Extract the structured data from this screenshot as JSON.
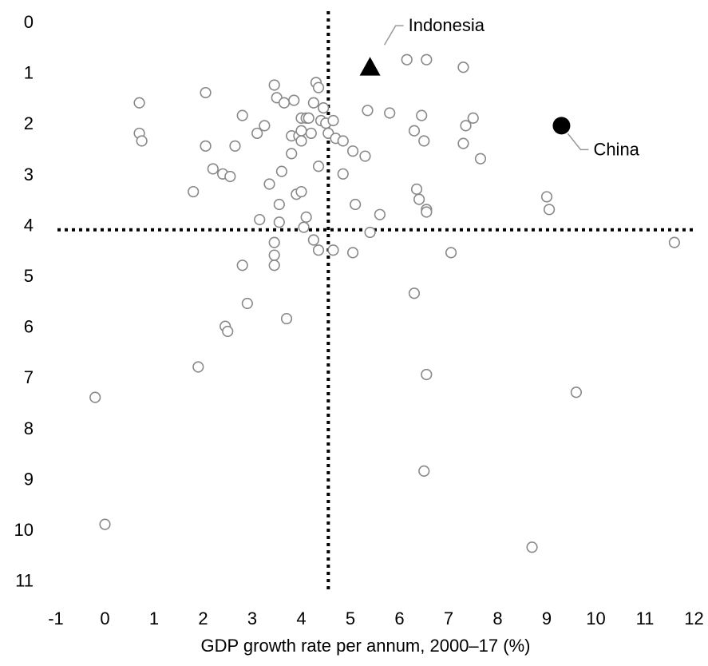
{
  "chart_data": {
    "type": "scatter",
    "title": "",
    "xlabel": "GDP growth rate per annum, 2000–17 (%)",
    "ylabel": "",
    "xlim": [
      -1,
      12
    ],
    "ylim": [
      0,
      11
    ],
    "y_inverted": true,
    "grid": false,
    "x_ticks": [
      "-1",
      "0",
      "1",
      "2",
      "3",
      "4",
      "5",
      "6",
      "7",
      "8",
      "9",
      "10",
      "11",
      "12"
    ],
    "y_ticks": [
      "0",
      "1",
      "2",
      "3",
      "4",
      "5",
      "6",
      "7",
      "8",
      "9",
      "10",
      "11"
    ],
    "reference_lines": {
      "x": 4.55,
      "y": 4.1,
      "style": "dotted"
    },
    "colors": {
      "points": "#888888",
      "highlight": "#000000",
      "leader": "#999999"
    },
    "highlights": [
      {
        "label": "Indonesia",
        "x": 5.4,
        "y": 0.9,
        "marker": "triangle"
      },
      {
        "label": "China",
        "x": 9.3,
        "y": 2.05,
        "marker": "circle"
      }
    ],
    "points": [
      [
        -0.2,
        7.4
      ],
      [
        0.0,
        9.9
      ],
      [
        0.7,
        1.6
      ],
      [
        0.7,
        2.2
      ],
      [
        0.75,
        2.35
      ],
      [
        1.8,
        3.35
      ],
      [
        1.9,
        6.8
      ],
      [
        2.05,
        1.4
      ],
      [
        2.05,
        2.45
      ],
      [
        2.2,
        2.9
      ],
      [
        2.4,
        3.0
      ],
      [
        2.45,
        6.0
      ],
      [
        2.5,
        6.1
      ],
      [
        2.55,
        3.05
      ],
      [
        2.65,
        2.45
      ],
      [
        2.8,
        1.85
      ],
      [
        2.8,
        4.8
      ],
      [
        2.9,
        5.55
      ],
      [
        3.1,
        2.2
      ],
      [
        3.15,
        3.9
      ],
      [
        3.25,
        2.05
      ],
      [
        3.35,
        3.2
      ],
      [
        3.45,
        4.35
      ],
      [
        3.45,
        4.6
      ],
      [
        3.45,
        4.8
      ],
      [
        3.45,
        1.25
      ],
      [
        3.5,
        1.5
      ],
      [
        3.55,
        3.6
      ],
      [
        3.55,
        3.95
      ],
      [
        3.6,
        2.95
      ],
      [
        3.65,
        1.6
      ],
      [
        3.7,
        5.85
      ],
      [
        3.8,
        2.25
      ],
      [
        3.8,
        2.6
      ],
      [
        3.85,
        1.55
      ],
      [
        3.9,
        3.4
      ],
      [
        3.95,
        2.25
      ],
      [
        4.0,
        1.9
      ],
      [
        4.0,
        2.15
      ],
      [
        4.0,
        3.35
      ],
      [
        4.0,
        2.35
      ],
      [
        4.05,
        4.05
      ],
      [
        4.1,
        3.85
      ],
      [
        4.1,
        1.9
      ],
      [
        4.15,
        1.9
      ],
      [
        4.2,
        2.2
      ],
      [
        4.25,
        4.3
      ],
      [
        4.25,
        1.6
      ],
      [
        4.3,
        1.2
      ],
      [
        4.35,
        4.5
      ],
      [
        4.35,
        1.3
      ],
      [
        4.35,
        2.85
      ],
      [
        4.4,
        1.95
      ],
      [
        4.45,
        1.7
      ],
      [
        4.5,
        2.0
      ],
      [
        4.55,
        2.2
      ],
      [
        4.65,
        4.5
      ],
      [
        4.65,
        1.95
      ],
      [
        4.7,
        2.3
      ],
      [
        4.85,
        2.35
      ],
      [
        4.85,
        3.0
      ],
      [
        5.05,
        4.55
      ],
      [
        5.05,
        2.55
      ],
      [
        5.1,
        3.6
      ],
      [
        5.3,
        2.65
      ],
      [
        5.35,
        1.75
      ],
      [
        5.4,
        4.15
      ],
      [
        5.6,
        3.8
      ],
      [
        5.8,
        1.8
      ],
      [
        6.15,
        0.75
      ],
      [
        6.3,
        5.35
      ],
      [
        6.3,
        2.15
      ],
      [
        6.35,
        3.3
      ],
      [
        6.4,
        3.5
      ],
      [
        6.45,
        1.85
      ],
      [
        6.5,
        2.35
      ],
      [
        6.5,
        8.85
      ],
      [
        6.55,
        3.7
      ],
      [
        6.55,
        3.75
      ],
      [
        6.55,
        0.75
      ],
      [
        6.55,
        6.95
      ],
      [
        7.05,
        4.55
      ],
      [
        7.3,
        0.9
      ],
      [
        7.3,
        2.4
      ],
      [
        7.35,
        2.05
      ],
      [
        7.5,
        1.9
      ],
      [
        7.65,
        2.7
      ],
      [
        8.7,
        10.35
      ],
      [
        9.0,
        3.45
      ],
      [
        9.05,
        3.7
      ],
      [
        9.6,
        7.3
      ],
      [
        11.6,
        4.35
      ]
    ]
  }
}
